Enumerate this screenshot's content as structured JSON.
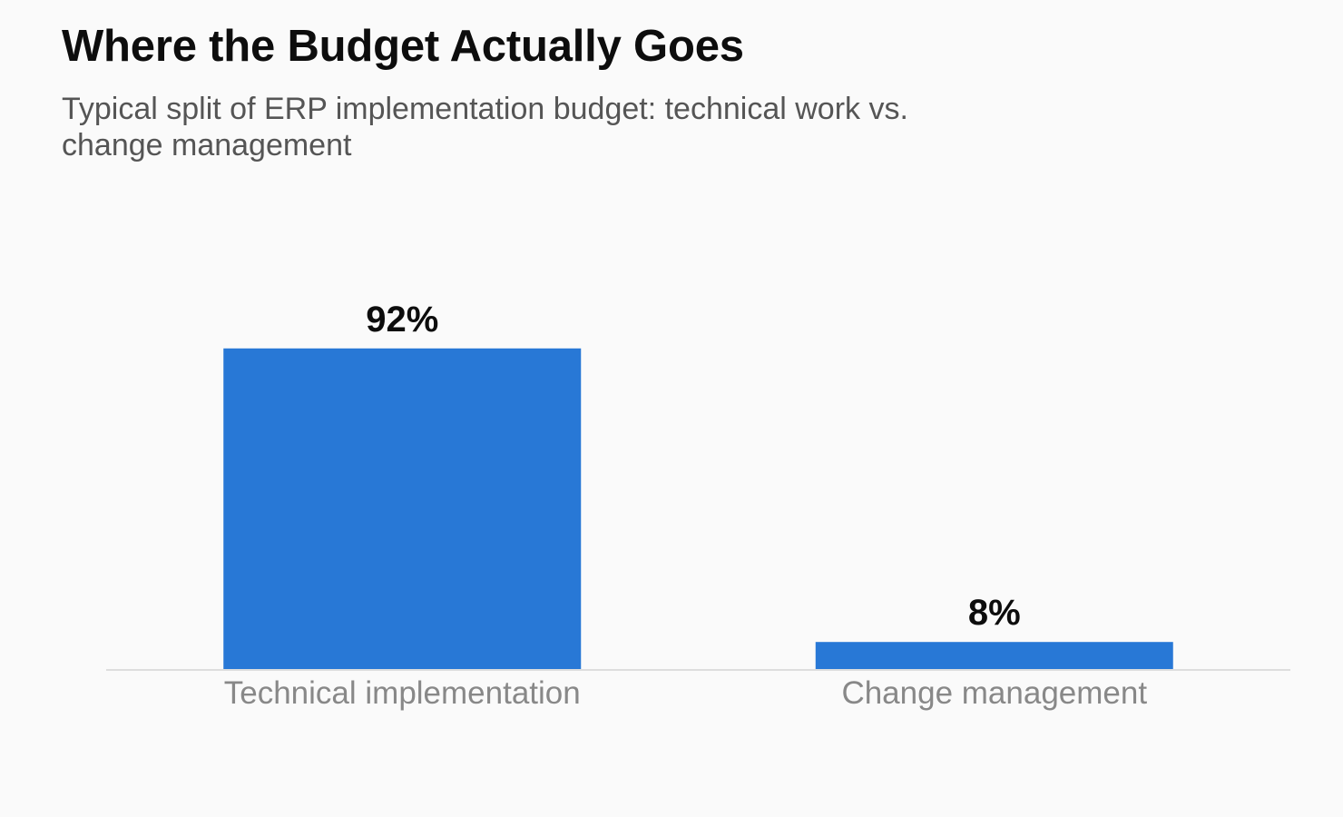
{
  "chart_data": {
    "type": "bar",
    "title": "Where the Budget Actually Goes",
    "subtitle": "Typical split of ERP implementation budget: technical work vs. change management",
    "categories": [
      "Technical implementation",
      "Change management"
    ],
    "values": [
      92,
      8
    ],
    "value_labels": [
      "92%",
      "8%"
    ],
    "unit": "%",
    "xlabel": "",
    "ylabel": "",
    "ylim": [
      0,
      100
    ],
    "grid": false,
    "legend": "none",
    "bar_color": "#2878d6"
  }
}
